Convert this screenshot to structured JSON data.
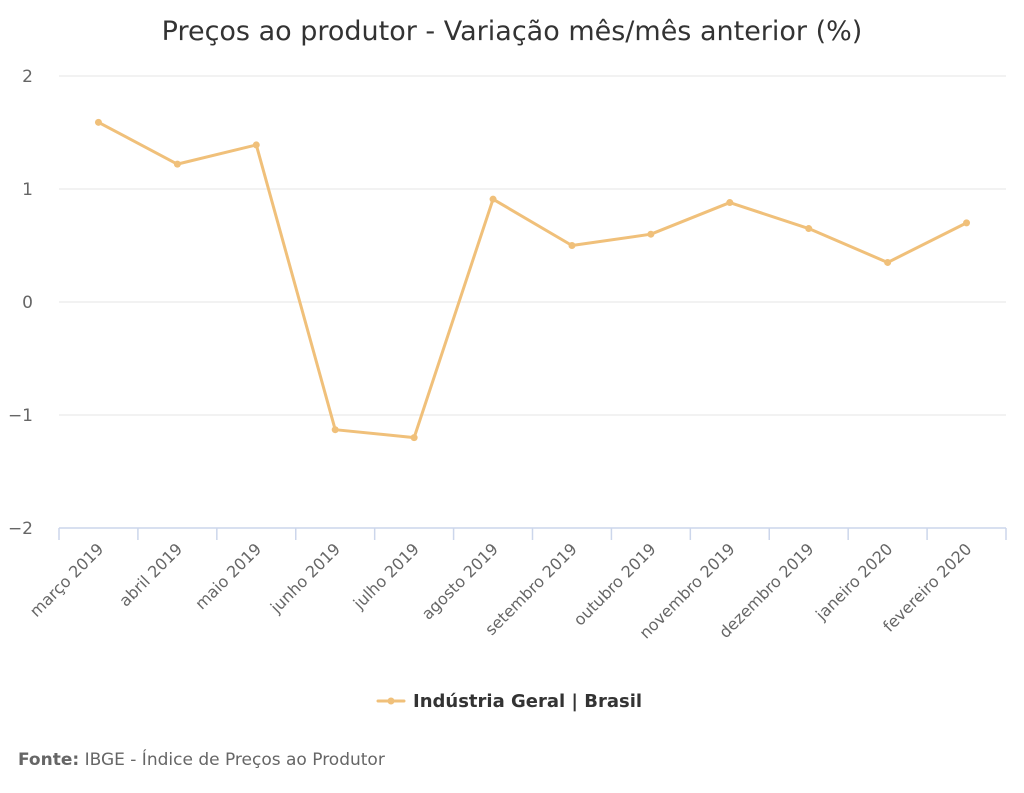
{
  "chart_data": {
    "type": "line",
    "title": "Preços ao produtor - Variação mês/mês anterior (%)",
    "xlabel": "",
    "ylabel": "",
    "ylim": [
      -2,
      2
    ],
    "yticks": [
      2,
      1,
      0,
      -1,
      -2
    ],
    "ytick_labels": [
      "2",
      "1",
      "0",
      "−1",
      "−2"
    ],
    "grid": true,
    "legend_position": "bottom-center",
    "categories": [
      "março 2019",
      "abril 2019",
      "maio 2019",
      "junho 2019",
      "julho 2019",
      "agosto 2019",
      "setembro 2019",
      "outubro 2019",
      "novembro 2019",
      "dezembro 2019",
      "janeiro 2020",
      "fevereiro 2020"
    ],
    "series": [
      {
        "name": "Indústria Geral | Brasil",
        "color": "#f0c07a",
        "values": [
          1.59,
          1.22,
          1.39,
          -1.13,
          -1.2,
          0.91,
          0.5,
          0.6,
          0.88,
          0.65,
          0.35,
          0.7
        ]
      }
    ]
  },
  "source": {
    "label": "Fonte:",
    "text": "IBGE - Índice de Preços ao Produtor"
  }
}
